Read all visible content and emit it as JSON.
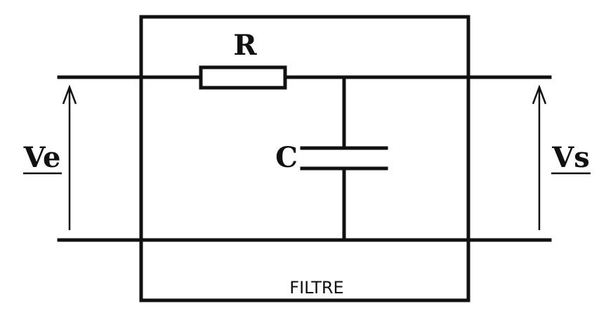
{
  "labels": {
    "resistor": "R",
    "capacitor": "C",
    "input_voltage": "Ve",
    "output_voltage": "Vs",
    "box_title": "FILTRE"
  },
  "colors": {
    "line": "#111111",
    "background": "#ffffff"
  }
}
